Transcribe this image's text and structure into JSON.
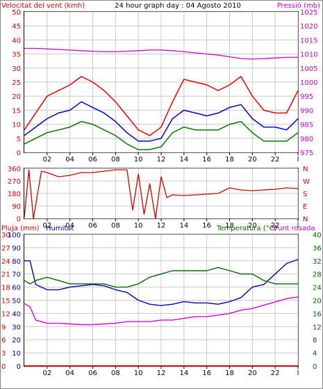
{
  "panel1": {
    "title_left": "Velocitat del vent (kmh)",
    "title_center": "24 hour graph day : 04 Agosto 2010",
    "title_right": "Pressió (mb)"
  },
  "panel3": {
    "title_rain": "Pluja (mm)",
    "title_hum": "Humitat",
    "title_temp": "Temperatura (°C)",
    "title_dew": "Punt rosada"
  },
  "colors": {
    "wind_avg": "#0000cc",
    "wind_gust": "#ee0000",
    "wind_min": "#007700",
    "pressure": "#cc00cc",
    "direction": "#cc0000",
    "humidity": "#0000aa",
    "temperature": "#006600",
    "dewpoint": "#dd00dd",
    "rain": "#cc0000",
    "grid": "#c8c8c8",
    "label_red": "#dd0000",
    "label_magenta": "#cc00cc",
    "label_blue": "#000099",
    "label_green": "#006600"
  },
  "chart_data": [
    {
      "type": "line",
      "title": "24 hour graph day : 04 Agosto 2010",
      "x_ticks": [
        "02",
        "04",
        "06",
        "08",
        "10",
        "12",
        "14",
        "16",
        "18",
        "20",
        "22",
        "l"
      ],
      "ylabel_left": "Velocitat del vent (kmh)",
      "ylim_left": [
        0,
        50
      ],
      "yticks_left": [
        "0",
        "5",
        "10",
        "15",
        "20",
        "25",
        "30",
        "35",
        "40",
        "45",
        "50"
      ],
      "ylabel_right": "Pressió (mb)",
      "ylim_right": [
        975,
        1025
      ],
      "yticks_right": [
        "975",
        "980",
        "985",
        "990",
        "995",
        "1000",
        "1005",
        "1010",
        "1015",
        "1020",
        "1025"
      ],
      "x": [
        0,
        1,
        2,
        3,
        4,
        5,
        6,
        7,
        8,
        9,
        10,
        11,
        12,
        13,
        14,
        15,
        16,
        17,
        18,
        19,
        20,
        21,
        22,
        23,
        24
      ],
      "series": [
        {
          "name": "wind_gust",
          "axis": "left",
          "values": [
            8,
            14,
            20,
            22,
            24,
            27,
            25,
            22,
            18,
            13,
            8,
            6,
            9,
            18,
            26,
            25,
            24,
            22,
            24,
            27,
            20,
            15,
            14,
            14,
            22
          ]
        },
        {
          "name": "wind_avg",
          "axis": "left",
          "values": [
            6,
            9,
            12,
            14,
            15,
            18,
            16,
            14,
            11,
            7,
            4,
            4,
            5,
            12,
            15,
            14,
            13,
            14,
            16,
            17,
            12,
            9,
            9,
            8,
            12
          ]
        },
        {
          "name": "wind_min",
          "axis": "left",
          "values": [
            3,
            5,
            7,
            8,
            9,
            11,
            10,
            8,
            6,
            3,
            1,
            1,
            2,
            7,
            9,
            8,
            8,
            8,
            10,
            11,
            7,
            4,
            4,
            4,
            7
          ]
        },
        {
          "name": "pressure",
          "axis": "right",
          "values": [
            1012,
            1012,
            1011.8,
            1011.6,
            1011.4,
            1011.2,
            1011,
            1010.8,
            1010.8,
            1011,
            1011.2,
            1011.4,
            1011.4,
            1011.2,
            1010.8,
            1010.4,
            1010,
            1009.6,
            1009,
            1008.4,
            1008.2,
            1008.4,
            1008.6,
            1008.8,
            1008.8
          ]
        }
      ]
    },
    {
      "type": "line",
      "x_ticks": [
        "02",
        "04",
        "06",
        "08",
        "10",
        "12",
        "14",
        "16",
        "18",
        "20",
        "22",
        "l"
      ],
      "ylim": [
        0,
        360
      ],
      "yticks_left": [
        "0",
        "90",
        "180",
        "270",
        "360"
      ],
      "yticks_right": [
        "N",
        "E",
        "S",
        "W",
        "N"
      ],
      "x": [
        0,
        0.4,
        0.8,
        1.5,
        2,
        3,
        4,
        5,
        6,
        7,
        8,
        9,
        9.5,
        10,
        10.5,
        11,
        11.5,
        12,
        12.5,
        13,
        14,
        15,
        16,
        17,
        18,
        19,
        20,
        21,
        22,
        23,
        24
      ],
      "series": [
        {
          "name": "direction",
          "values": [
            10,
            350,
            0,
            340,
            330,
            300,
            310,
            330,
            330,
            340,
            350,
            350,
            60,
            320,
            30,
            250,
            0,
            300,
            150,
            170,
            165,
            170,
            175,
            180,
            220,
            205,
            200,
            205,
            210,
            220,
            215
          ]
        }
      ]
    },
    {
      "type": "line",
      "x_ticks": [
        "02",
        "04",
        "06",
        "08",
        "10",
        "12",
        "14",
        "16",
        "18",
        "20",
        "22",
        "l"
      ],
      "ylabel_left": "Pluja (mm)",
      "ylim_rain": [
        0,
        30
      ],
      "yticks_rain": [
        "0",
        "3",
        "6",
        "9",
        "12",
        "15",
        "18",
        "21",
        "24",
        "27",
        "30"
      ],
      "ylim_hum": [
        0,
        100
      ],
      "yticks_hum": [
        "0",
        "10",
        "20",
        "30",
        "40",
        "50",
        "60",
        "70",
        "80",
        "90",
        "100"
      ],
      "ylabel_right": "Temperatura (°C)",
      "ylim_temp": [
        0,
        40
      ],
      "yticks_temp": [
        "0",
        "4",
        "8",
        "12",
        "16",
        "20",
        "24",
        "28",
        "32",
        "36",
        "40"
      ],
      "x": [
        0,
        0.5,
        1,
        2,
        3,
        4,
        5,
        6,
        7,
        8,
        9,
        10,
        11,
        12,
        13,
        14,
        15,
        16,
        17,
        18,
        19,
        20,
        21,
        22,
        23,
        24
      ],
      "series": [
        {
          "name": "Humitat",
          "axis": "hum",
          "values": [
            80,
            80,
            62,
            58,
            58,
            60,
            61,
            62,
            61,
            58,
            56,
            50,
            47,
            46,
            47,
            49,
            48,
            48,
            47,
            49,
            52,
            60,
            62,
            70,
            78,
            81
          ]
        },
        {
          "name": "Temperatura",
          "axis": "temp",
          "values": [
            26,
            25,
            26,
            27,
            26,
            25,
            25,
            25,
            25,
            24,
            24,
            25,
            27,
            28,
            29,
            29,
            29,
            29,
            30,
            29,
            28,
            28,
            26,
            25,
            25,
            25
          ]
        },
        {
          "name": "Punt rosada",
          "axis": "temp",
          "values": [
            19,
            18,
            14,
            13,
            13,
            12.8,
            12.6,
            12.6,
            12.8,
            13,
            13.5,
            13.5,
            13.5,
            14,
            14,
            14.5,
            15,
            15,
            15.5,
            16,
            17,
            17.5,
            18.5,
            19.5,
            20.5,
            21
          ]
        },
        {
          "name": "Pluja",
          "axis": "rain",
          "values": [
            0,
            0,
            0,
            0,
            0,
            0,
            0,
            0,
            0,
            0,
            0,
            0,
            0,
            0,
            0,
            0,
            0,
            0,
            0,
            0,
            0,
            0,
            0,
            0,
            0,
            0
          ]
        }
      ]
    }
  ]
}
